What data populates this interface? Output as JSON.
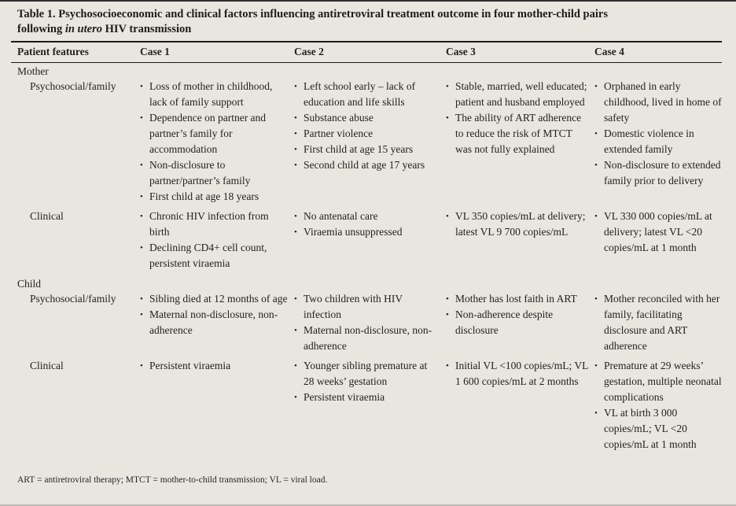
{
  "page": {
    "background_color": "#e8e6df",
    "text_color": "#222220",
    "rule_color": "#1a1a18"
  },
  "bullet_char": "•",
  "title": {
    "line1": "Table 1. Psychosocioeconomic and clinical factors influencing antiretroviral treatment outcome in four mother-child pairs",
    "line2_prefix": "following ",
    "line2_italic": "in utero",
    "line2_suffix": " HIV transmission"
  },
  "columns": [
    "Patient features",
    "Case 1",
    "Case 2",
    "Case 3",
    "Case 4"
  ],
  "sections": [
    {
      "group": "Mother",
      "rows": [
        {
          "label": "Psychosocial/family",
          "cells": [
            [
              "Loss of mother in childhood, lack of family support",
              "Dependence on partner and partner’s family for accommodation",
              "Non-disclosure to partner/partner’s family",
              "First child at age 18 years"
            ],
            [
              "Left school early – lack of education and life skills",
              "Substance abuse",
              "Partner violence",
              "First child at age 15 years",
              "Second child at age 17 years"
            ],
            [
              "Stable, married, well educated; patient and husband employed",
              "The ability of ART adherence to reduce the risk of MTCT was not fully explained"
            ],
            [
              "Orphaned in early childhood, lived in home of safety",
              "Domestic violence in extended family",
              "Non-disclosure to extended family prior to delivery"
            ]
          ]
        },
        {
          "label": "Clinical",
          "cells": [
            [
              "Chronic HIV infection from birth",
              "Declining CD4+ cell count, persistent viraemia"
            ],
            [
              "No antenatal care",
              "Viraemia unsuppressed"
            ],
            [
              "VL 350 copies/mL at delivery; latest VL 9 700 copies/mL"
            ],
            [
              "VL 330 000 copies/mL at delivery; latest VL <20 copies/mL at 1 month"
            ]
          ]
        }
      ]
    },
    {
      "group": "Child",
      "rows": [
        {
          "label": "Psychosocial/family",
          "cells": [
            [
              "Sibling died at 12 months of age",
              "Maternal non-disclosure, non-adherence"
            ],
            [
              "Two children with HIV infection",
              "Maternal non-disclosure, non-adherence"
            ],
            [
              "Mother has lost faith in ART",
              "Non-adherence despite disclosure"
            ],
            [
              "Mother reconciled with her family, facilitating disclosure and ART adherence"
            ]
          ]
        },
        {
          "label": "Clinical",
          "cells": [
            [
              "Persistent viraemia"
            ],
            [
              "Younger sibling premature at 28 weeks’ gestation",
              "Persistent viraemia"
            ],
            [
              "Initial VL <100 copies/mL; VL 1 600 copies/mL at 2 months"
            ],
            [
              "Premature at 29 weeks’ gestation, multiple neonatal complications",
              "VL at birth 3 000 copies/mL; VL <20 copies/mL at 1 month"
            ]
          ]
        }
      ]
    }
  ],
  "footnote": "ART = antiretroviral therapy; MTCT = mother-to-child transmission; VL = viral load."
}
